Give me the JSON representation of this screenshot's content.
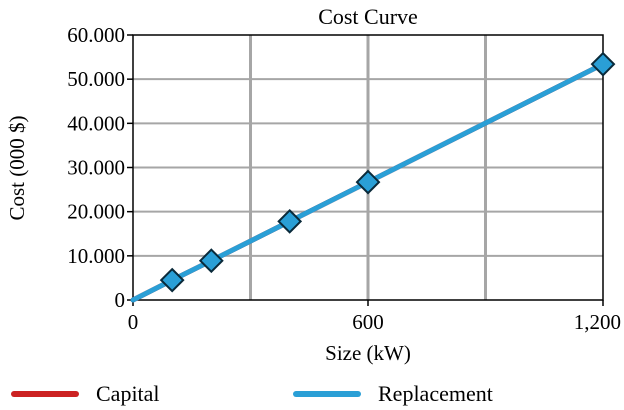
{
  "chart_data": {
    "type": "line",
    "title": "Cost Curve",
    "xlabel": "Size (kW)",
    "ylabel": "Cost (000 $)",
    "xlim": [
      0,
      1200
    ],
    "ylim": [
      0,
      60
    ],
    "x_ticks": [
      0,
      600,
      1200
    ],
    "x_tick_labels": [
      "0",
      "600",
      "1,200"
    ],
    "x_gridlines": [
      0,
      300,
      600,
      900,
      1200
    ],
    "y_ticks": [
      0,
      10,
      20,
      30,
      40,
      50,
      60
    ],
    "y_tick_labels": [
      "0",
      "10.000",
      "20.000",
      "30.000",
      "40.000",
      "50.000",
      "60.000"
    ],
    "grid": true,
    "legend_position": "bottom",
    "series": [
      {
        "name": "Capital",
        "color": "#cc2222",
        "x": [
          0,
          100,
          200,
          400,
          600,
          1200
        ],
        "values": [
          0,
          4.5,
          8.9,
          17.8,
          26.7,
          53.4
        ],
        "markers": false
      },
      {
        "name": "Replacement",
        "color": "#2a9fd6",
        "x": [
          0,
          100,
          200,
          400,
          600,
          1200
        ],
        "values": [
          0,
          4.5,
          8.9,
          17.8,
          26.7,
          53.4
        ],
        "marker_x": [
          100,
          200,
          400,
          600,
          1200
        ],
        "marker_values": [
          4.5,
          8.9,
          17.8,
          26.7,
          53.4
        ],
        "markers": true
      }
    ]
  }
}
